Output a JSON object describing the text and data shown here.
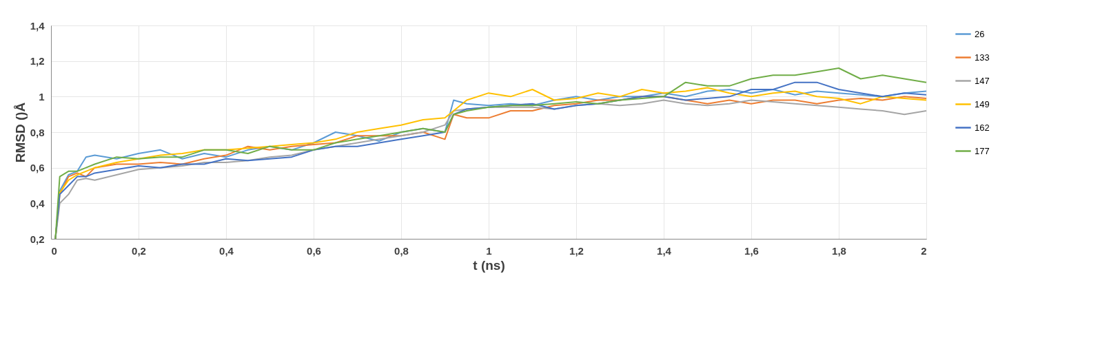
{
  "chart_data": {
    "type": "line",
    "xlabel": "t (ns)",
    "ylabel": "RMSD ()Å",
    "x": [
      0.01,
      0.02,
      0.04,
      0.06,
      0.08,
      0.1,
      0.15,
      0.2,
      0.25,
      0.3,
      0.35,
      0.4,
      0.45,
      0.5,
      0.55,
      0.6,
      0.65,
      0.7,
      0.75,
      0.8,
      0.85,
      0.9,
      0.92,
      0.95,
      1.0,
      1.05,
      1.1,
      1.15,
      1.2,
      1.25,
      1.3,
      1.35,
      1.4,
      1.45,
      1.5,
      1.55,
      1.6,
      1.65,
      1.7,
      1.75,
      1.8,
      1.85,
      1.9,
      1.95,
      2.0
    ],
    "series": [
      {
        "name": "26",
        "color": "#5b9bd5",
        "values": [
          0.2,
          0.47,
          0.56,
          0.58,
          0.66,
          0.67,
          0.65,
          0.68,
          0.7,
          0.65,
          0.68,
          0.66,
          0.7,
          0.72,
          0.7,
          0.74,
          0.8,
          0.78,
          0.75,
          0.8,
          0.82,
          0.8,
          0.98,
          0.96,
          0.95,
          0.96,
          0.95,
          0.98,
          1.0,
          0.98,
          1.0,
          1.0,
          1.02,
          1.0,
          1.03,
          1.04,
          1.02,
          1.04,
          1.01,
          1.03,
          1.02,
          1.01,
          1.0,
          1.02,
          1.03
        ]
      },
      {
        "name": "133",
        "color": "#ed7d31",
        "values": [
          0.2,
          0.45,
          0.55,
          0.57,
          0.55,
          0.6,
          0.62,
          0.62,
          0.63,
          0.62,
          0.65,
          0.67,
          0.72,
          0.7,
          0.72,
          0.73,
          0.74,
          0.78,
          0.78,
          0.78,
          0.8,
          0.76,
          0.9,
          0.88,
          0.88,
          0.92,
          0.92,
          0.95,
          0.96,
          0.98,
          0.98,
          1.0,
          1.0,
          0.98,
          0.96,
          0.98,
          0.96,
          0.98,
          0.98,
          0.96,
          0.98,
          0.99,
          0.98,
          1.0,
          0.99
        ]
      },
      {
        "name": "147",
        "color": "#a5a5a5",
        "values": [
          0.2,
          0.4,
          0.45,
          0.53,
          0.54,
          0.53,
          0.56,
          0.59,
          0.6,
          0.61,
          0.63,
          0.63,
          0.64,
          0.66,
          0.67,
          0.7,
          0.72,
          0.74,
          0.76,
          0.78,
          0.8,
          0.84,
          0.92,
          0.93,
          0.94,
          0.94,
          0.94,
          0.93,
          0.95,
          0.96,
          0.95,
          0.96,
          0.98,
          0.96,
          0.95,
          0.96,
          0.98,
          0.97,
          0.96,
          0.95,
          0.94,
          0.93,
          0.92,
          0.9,
          0.92
        ]
      },
      {
        "name": "149",
        "color": "#ffc000",
        "values": [
          0.2,
          0.46,
          0.53,
          0.56,
          0.58,
          0.6,
          0.63,
          0.65,
          0.67,
          0.68,
          0.7,
          0.7,
          0.71,
          0.72,
          0.73,
          0.74,
          0.76,
          0.8,
          0.82,
          0.84,
          0.87,
          0.88,
          0.92,
          0.98,
          1.02,
          1.0,
          1.04,
          0.98,
          0.99,
          1.02,
          1.0,
          1.04,
          1.02,
          1.03,
          1.05,
          1.02,
          1.0,
          1.02,
          1.03,
          1.0,
          0.99,
          0.96,
          1.0,
          0.99,
          0.98
        ]
      },
      {
        "name": "162",
        "color": "#4472c4",
        "values": [
          0.2,
          0.45,
          0.5,
          0.55,
          0.55,
          0.57,
          0.59,
          0.61,
          0.6,
          0.62,
          0.62,
          0.65,
          0.64,
          0.65,
          0.66,
          0.7,
          0.72,
          0.72,
          0.74,
          0.76,
          0.78,
          0.8,
          0.9,
          0.93,
          0.94,
          0.95,
          0.96,
          0.93,
          0.95,
          0.96,
          0.98,
          1.0,
          1.0,
          0.98,
          0.99,
          1.0,
          1.04,
          1.04,
          1.08,
          1.08,
          1.04,
          1.02,
          1.0,
          1.02,
          1.01
        ]
      },
      {
        "name": "177",
        "color": "#70ad47",
        "values": [
          0.2,
          0.55,
          0.58,
          0.58,
          0.6,
          0.62,
          0.66,
          0.65,
          0.66,
          0.66,
          0.7,
          0.7,
          0.68,
          0.72,
          0.7,
          0.7,
          0.74,
          0.76,
          0.78,
          0.8,
          0.82,
          0.8,
          0.9,
          0.92,
          0.94,
          0.95,
          0.95,
          0.96,
          0.97,
          0.96,
          0.98,
          0.99,
          1.0,
          1.08,
          1.06,
          1.06,
          1.1,
          1.12,
          1.12,
          1.14,
          1.16,
          1.1,
          1.12,
          1.1,
          1.08
        ]
      }
    ],
    "xlim": [
      0,
      2
    ],
    "xticks": [
      0,
      {
        "value": 0.2,
        "label": "0,2"
      },
      {
        "value": 0.4,
        "label": "0,4"
      },
      {
        "value": 0.6,
        "label": "0,6"
      },
      {
        "value": 0.8,
        "label": "0,8"
      },
      1,
      {
        "value": 1.2,
        "label": "1,2"
      },
      {
        "value": 1.4,
        "label": "1,4"
      },
      {
        "value": 1.6,
        "label": "1,6"
      },
      {
        "value": 1.8,
        "label": "1,8"
      },
      2
    ],
    "ylim": [
      0.2,
      1.4
    ],
    "yticks": [
      {
        "value": 0.2,
        "label": "0,2"
      },
      {
        "value": 0.4,
        "label": "0,4"
      },
      {
        "value": 0.6,
        "label": "0,6"
      },
      {
        "value": 0.8,
        "label": "0,8"
      },
      1,
      {
        "value": 1.2,
        "label": "1,2"
      },
      {
        "value": 1.4,
        "label": "1,4"
      }
    ],
    "grid": true,
    "legend": "right",
    "line_style": "solid",
    "marker": "none"
  }
}
